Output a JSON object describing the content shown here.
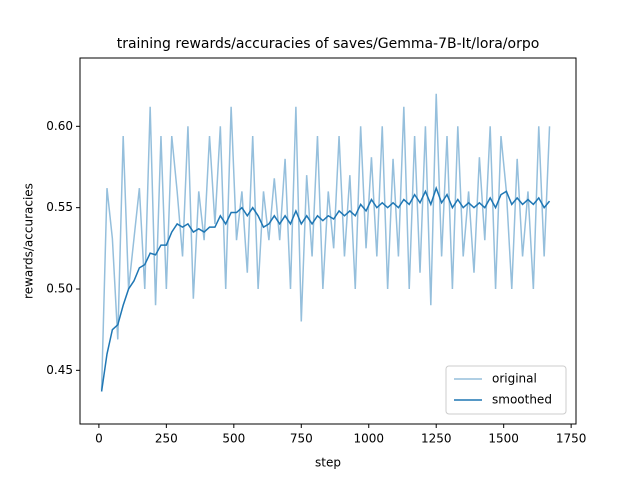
{
  "chart_data": {
    "type": "line",
    "title": "training rewards/accuracies of saves/Gemma-7B-It/lora/orpo",
    "x_label": "step",
    "y_label": "rewards/accuracies",
    "x": [
      10,
      30,
      50,
      70,
      90,
      110,
      130,
      150,
      170,
      190,
      210,
      230,
      250,
      270,
      290,
      310,
      330,
      350,
      370,
      390,
      410,
      430,
      450,
      470,
      490,
      510,
      530,
      550,
      570,
      590,
      610,
      630,
      650,
      670,
      690,
      710,
      730,
      750,
      770,
      790,
      810,
      830,
      850,
      870,
      890,
      910,
      930,
      950,
      970,
      990,
      1010,
      1030,
      1050,
      1070,
      1090,
      1110,
      1130,
      1150,
      1170,
      1190,
      1210,
      1230,
      1250,
      1270,
      1290,
      1310,
      1330,
      1350,
      1370,
      1390,
      1410,
      1430,
      1450,
      1470,
      1490,
      1510,
      1530,
      1550,
      1570,
      1590,
      1610,
      1630,
      1650,
      1670
    ],
    "series": [
      {
        "name": "original",
        "color": "#95bfdc",
        "values": [
          0.438,
          0.562,
          0.531,
          0.469,
          0.594,
          0.5,
          0.531,
          0.562,
          0.5,
          0.612,
          0.49,
          0.594,
          0.5,
          0.594,
          0.56,
          0.52,
          0.6,
          0.494,
          0.56,
          0.53,
          0.594,
          0.54,
          0.6,
          0.5,
          0.612,
          0.53,
          0.56,
          0.51,
          0.594,
          0.5,
          0.56,
          0.53,
          0.568,
          0.53,
          0.58,
          0.5,
          0.612,
          0.48,
          0.57,
          0.52,
          0.594,
          0.5,
          0.56,
          0.525,
          0.594,
          0.52,
          0.57,
          0.5,
          0.6,
          0.525,
          0.581,
          0.52,
          0.6,
          0.5,
          0.58,
          0.52,
          0.612,
          0.5,
          0.594,
          0.51,
          0.6,
          0.49,
          0.62,
          0.52,
          0.594,
          0.5,
          0.6,
          0.52,
          0.56,
          0.51,
          0.581,
          0.53,
          0.6,
          0.5,
          0.594,
          0.56,
          0.5,
          0.58,
          0.52,
          0.56,
          0.5,
          0.6,
          0.52,
          0.6
        ]
      },
      {
        "name": "smoothed",
        "color": "#1f77b4",
        "values": [
          0.437,
          0.46,
          0.475,
          0.478,
          0.49,
          0.5,
          0.505,
          0.513,
          0.515,
          0.522,
          0.521,
          0.527,
          0.527,
          0.535,
          0.54,
          0.538,
          0.54,
          0.535,
          0.537,
          0.535,
          0.538,
          0.538,
          0.545,
          0.54,
          0.547,
          0.547,
          0.55,
          0.545,
          0.55,
          0.545,
          0.538,
          0.54,
          0.545,
          0.54,
          0.545,
          0.54,
          0.548,
          0.54,
          0.545,
          0.54,
          0.545,
          0.542,
          0.545,
          0.543,
          0.548,
          0.545,
          0.548,
          0.545,
          0.552,
          0.548,
          0.555,
          0.55,
          0.553,
          0.55,
          0.553,
          0.55,
          0.555,
          0.552,
          0.558,
          0.553,
          0.56,
          0.552,
          0.562,
          0.553,
          0.558,
          0.55,
          0.555,
          0.55,
          0.553,
          0.55,
          0.553,
          0.55,
          0.556,
          0.55,
          0.558,
          0.56,
          0.552,
          0.556,
          0.552,
          0.555,
          0.552,
          0.556,
          0.55,
          0.554
        ]
      }
    ],
    "xlim": [
      -70,
      1768
    ],
    "ylim": [
      0.417,
      0.642
    ],
    "xticks": [
      0,
      250,
      500,
      750,
      1000,
      1250,
      1500,
      1750
    ],
    "yticks": [
      0.45,
      {
        "value": 0.5,
        "label": "0.50"
      },
      0.55,
      {
        "value": 0.6,
        "label": "0.60"
      }
    ],
    "legend": "lower right"
  }
}
